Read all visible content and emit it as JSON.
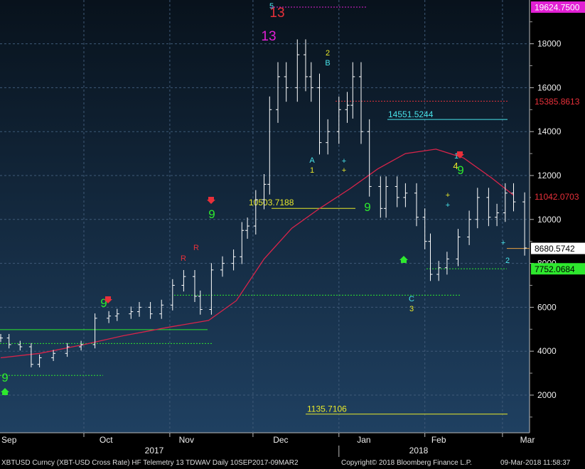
{
  "chart_data": {
    "type": "line",
    "title": "",
    "ylim": [
      0,
      20000
    ],
    "y_ticks": [
      2000,
      4000,
      6000,
      8000,
      10000,
      12000,
      14000,
      16000,
      18000
    ],
    "x_labels": [
      "Sep",
      "Oct",
      "Nov",
      "Dec",
      "Jan",
      "Feb",
      "Mar"
    ],
    "year_labels": [
      "2017",
      "2018"
    ],
    "x_range": [
      "2017-09-01",
      "2018-03-09"
    ],
    "price_series": {
      "dates": [
        "2017-09-01",
        "2017-09-04",
        "2017-09-08",
        "2017-09-12",
        "2017-09-15",
        "2017-09-20",
        "2017-09-25",
        "2017-09-30",
        "2017-10-05",
        "2017-10-10",
        "2017-10-13",
        "2017-10-18",
        "2017-10-21",
        "2017-10-25",
        "2017-10-29",
        "2017-11-02",
        "2017-11-06",
        "2017-11-10",
        "2017-11-12",
        "2017-11-16",
        "2017-11-20",
        "2017-11-24",
        "2017-11-27",
        "2017-11-29",
        "2017-12-02",
        "2017-12-05",
        "2017-12-07",
        "2017-12-10",
        "2017-12-13",
        "2017-12-17",
        "2017-12-20",
        "2017-12-22",
        "2017-12-25",
        "2017-12-28",
        "2018-01-01",
        "2018-01-04",
        "2018-01-06",
        "2018-01-09",
        "2018-01-12",
        "2018-01-16",
        "2018-01-18",
        "2018-01-22",
        "2018-01-25",
        "2018-01-29",
        "2018-02-01",
        "2018-02-03",
        "2018-02-06",
        "2018-02-09",
        "2018-02-13",
        "2018-02-17",
        "2018-02-20",
        "2018-02-24",
        "2018-02-27",
        "2018-03-02",
        "2018-03-05",
        "2018-03-09"
      ],
      "values": [
        4600,
        4300,
        4200,
        3400,
        3700,
        3900,
        4200,
        4300,
        5500,
        5600,
        5700,
        5800,
        6000,
        5700,
        6100,
        7000,
        7400,
        6500,
        5900,
        7700,
        8000,
        8300,
        9500,
        9700,
        10900,
        11600,
        15000,
        16500,
        16000,
        17500,
        16500,
        16000,
        13500,
        14000,
        15000,
        15200,
        16500,
        14000,
        11500,
        10500,
        11500,
        11000,
        11200,
        10100,
        9000,
        7500,
        7800,
        8200,
        9200,
        10000,
        11000,
        10100,
        10300,
        11200,
        10800,
        8700
      ]
    },
    "ma_series": {
      "dates": [
        "2017-09-01",
        "2017-09-15",
        "2017-10-01",
        "2017-10-15",
        "2017-11-01",
        "2017-11-15",
        "2017-11-25",
        "2017-12-05",
        "2017-12-15",
        "2017-12-25",
        "2018-01-05",
        "2018-01-15",
        "2018-01-25",
        "2018-02-05",
        "2018-02-15",
        "2018-02-25",
        "2018-03-05"
      ],
      "values": [
        3700,
        3900,
        4300,
        4700,
        5100,
        5400,
        6300,
        8200,
        9600,
        10500,
        11400,
        12300,
        13000,
        13200,
        12800,
        11900,
        11100
      ]
    },
    "price_labels": [
      "19624.7500",
      "15385.8613",
      "11042.0703",
      "8680.5742",
      "7752.0684"
    ],
    "level_labels": [
      "14551.5244",
      "10503.7188",
      "1135.7106"
    ],
    "sequence_labels": [
      "9",
      "9",
      "9",
      "9",
      "9",
      "R",
      "R",
      "13",
      "13",
      "5",
      "2",
      "B",
      "A",
      "1",
      "C",
      "3",
      "1",
      "4",
      "2"
    ],
    "grid": true
  },
  "footer": {
    "security": "XBTUSD Curncy (XBT-USD Cross Rate) HF Telemetry 13 TDWAV  Daily 10SEP2017-09MAR2",
    "copyright": "Copyright© 2018 Bloomberg Finance L.P.",
    "timestamp": "09-Mar-2018 11:58:37"
  },
  "colors": {
    "bg_top": "#0a1520",
    "bg_bottom": "#1e3f60",
    "price": "#ffffff",
    "ma": "#d9244a",
    "green": "#2ee82e",
    "yellow": "#e8e82a",
    "cyan": "#49e4ea",
    "red": "#e8303a",
    "magenta": "#e21fd4"
  }
}
